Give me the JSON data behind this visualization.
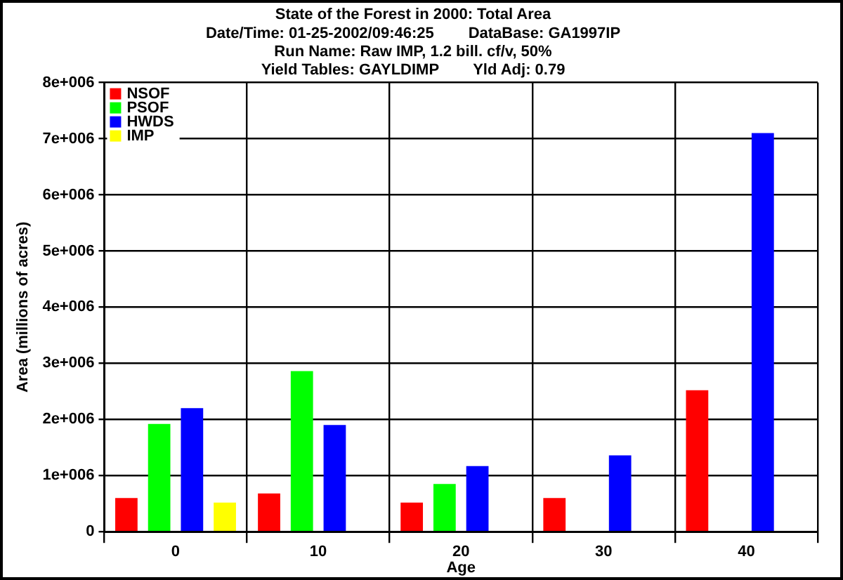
{
  "chart_data": {
    "type": "bar",
    "title": "State of the Forest in 2000: Total Area",
    "subtitle": "Date/Time: 01-25-2002/09:46:25        DataBase: GA1997IP\nRun Name: Raw IMP, 1.2 bill. cf/v, 50%\nYield Tables: GAYLDIMP        Yld Adj: 0.79",
    "xlabel": "Age",
    "ylabel": "Area (millions of acres)",
    "categories": [
      "0",
      "10",
      "20",
      "30",
      "40"
    ],
    "series": [
      {
        "name": "NSOF",
        "color": "#ff0000",
        "values": [
          600000,
          680000,
          520000,
          600000,
          2520000
        ]
      },
      {
        "name": "PSOF",
        "color": "#00ff00",
        "values": [
          1920000,
          2860000,
          850000,
          null,
          null
        ]
      },
      {
        "name": "HWDS",
        "color": "#0000ff",
        "values": [
          2200000,
          1900000,
          1170000,
          1360000,
          7100000
        ]
      },
      {
        "name": "IMP",
        "color": "#ffff00",
        "values": [
          520000,
          null,
          null,
          null,
          null
        ]
      }
    ],
    "ylim": [
      0,
      8000000
    ],
    "yticks": [
      {
        "value": 0,
        "label": "0"
      },
      {
        "value": 1000000,
        "label": "1e+006"
      },
      {
        "value": 2000000,
        "label": "2e+006"
      },
      {
        "value": 3000000,
        "label": "3e+006"
      },
      {
        "value": 4000000,
        "label": "4e+006"
      },
      {
        "value": 5000000,
        "label": "5e+006"
      },
      {
        "value": 6000000,
        "label": "6e+006"
      },
      {
        "value": 7000000,
        "label": "7e+006"
      },
      {
        "value": 8000000,
        "label": "8e+006"
      }
    ],
    "grid": true,
    "legend": "top left"
  }
}
